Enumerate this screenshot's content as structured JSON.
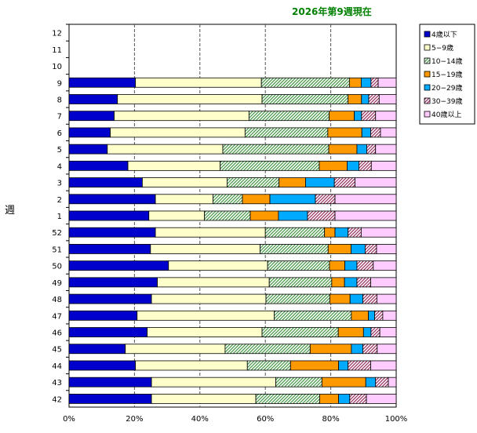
{
  "chart_data": {
    "type": "bar",
    "orientation": "horizontal",
    "stacked": "percent",
    "title": "2026年第9週現在",
    "ylabel": "週",
    "xlabel": "",
    "xlim": [
      0,
      100
    ],
    "x_ticks": [
      "0%",
      "20%",
      "40%",
      "60%",
      "80%",
      "100%"
    ],
    "grid": "vertical dashed",
    "legend_position": "right",
    "categories": [
      "12",
      "11",
      "10",
      "9",
      "8",
      "7",
      "6",
      "5",
      "4",
      "3",
      "2",
      "1",
      "52",
      "51",
      "50",
      "49",
      "48",
      "47",
      "46",
      "45",
      "44",
      "43",
      "42"
    ],
    "series": [
      {
        "name": "4歳以下",
        "color": "#0000cc",
        "pattern": "solid",
        "values": [
          0,
          0,
          0,
          20.3,
          14.8,
          13.8,
          12.6,
          11.7,
          18.0,
          22.4,
          26.4,
          24.4,
          26.4,
          24.9,
          30.4,
          27.0,
          25.2,
          20.8,
          23.9,
          17.2,
          20.3,
          25.2,
          25.2
        ]
      },
      {
        "name": "5−9歳",
        "color": "#ffffcc",
        "pattern": "solid",
        "values": [
          0,
          0,
          0,
          38.5,
          44.2,
          41.2,
          41.2,
          35.3,
          28.2,
          25.9,
          17.6,
          17.0,
          33.6,
          33.5,
          30.3,
          34.2,
          35.0,
          41.9,
          35.1,
          30.5,
          34.2,
          38.0,
          31.9
        ]
      },
      {
        "name": "10−14歳",
        "color": "#4a9a4a",
        "pattern": "diagonal",
        "values": [
          0,
          0,
          0,
          26.9,
          26.3,
          24.5,
          25.3,
          32.4,
          30.3,
          15.9,
          9.0,
          14.0,
          18.1,
          20.8,
          18.9,
          19.1,
          19.5,
          23.6,
          23.3,
          26.0,
          13.2,
          14.1,
          19.5
        ]
      },
      {
        "name": "15−19歳",
        "color": "#ff9900",
        "pattern": "solid",
        "values": [
          0,
          0,
          0,
          3.6,
          4.1,
          7.7,
          10.4,
          8.6,
          8.5,
          8.1,
          8.4,
          8.6,
          3.2,
          7.0,
          4.7,
          3.9,
          6.2,
          5.2,
          7.7,
          12.6,
          14.7,
          13.4,
          5.8
        ]
      },
      {
        "name": "20−29歳",
        "color": "#00aaff",
        "pattern": "solid",
        "values": [
          0,
          0,
          0,
          3.0,
          2.2,
          2.2,
          2.7,
          3.0,
          3.6,
          8.8,
          13.9,
          8.9,
          4.0,
          4.3,
          3.7,
          3.8,
          3.9,
          1.9,
          2.3,
          3.5,
          2.9,
          3.0,
          3.4
        ]
      },
      {
        "name": "30−39歳",
        "color": "#993366",
        "pattern": "diagonal",
        "values": [
          0,
          0,
          0,
          2.2,
          3.2,
          4.3,
          3.0,
          2.7,
          3.8,
          6.3,
          6.0,
          8.4,
          4.0,
          3.5,
          5.0,
          4.2,
          4.3,
          2.5,
          2.7,
          4.4,
          6.9,
          3.9,
          5.1
        ]
      },
      {
        "name": "40歳以上",
        "color": "#ffccff",
        "pattern": "solid",
        "values": [
          0,
          0,
          0,
          5.5,
          5.2,
          6.3,
          4.8,
          6.3,
          7.6,
          12.6,
          18.7,
          18.7,
          10.7,
          6.0,
          7.0,
          7.8,
          5.9,
          4.1,
          5.0,
          5.8,
          7.8,
          2.4,
          9.1
        ]
      }
    ]
  }
}
